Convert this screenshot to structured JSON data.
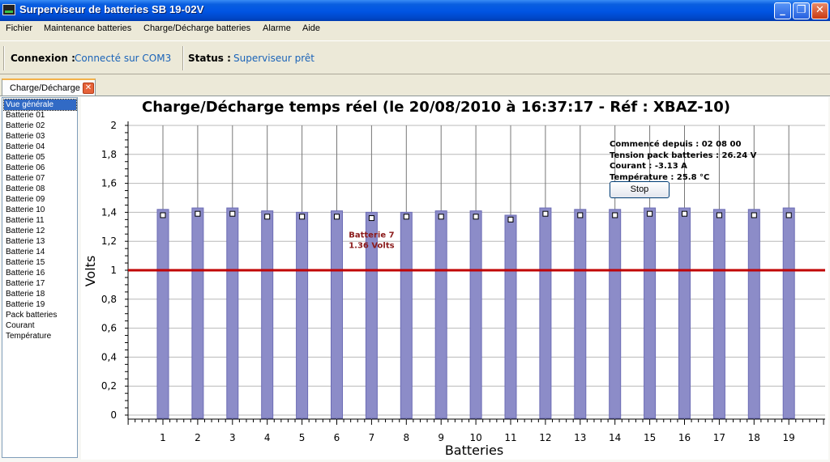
{
  "window": {
    "title": "Surperviseur de batteries SB 19-02V",
    "controls": {
      "minimize": "_",
      "maximize": "❐",
      "close": "✕"
    }
  },
  "menu": {
    "items": [
      "Fichier",
      "Maintenance batteries",
      "Charge/Décharge batteries",
      "Alarme",
      "Aide"
    ]
  },
  "status": {
    "connexion_label": "Connexion :",
    "connexion_value": "Connecté sur COM3",
    "status_label": "Status :",
    "status_value": "Superviseur prêt"
  },
  "tabs": [
    {
      "label": "Charge/Décharge",
      "close": "✕"
    }
  ],
  "sidebar": {
    "selected_index": 0,
    "items": [
      "Vue générale",
      "Batterie 01",
      "Batterie 02",
      "Batterie 03",
      "Batterie 04",
      "Batterie 05",
      "Batterie 06",
      "Batterie 07",
      "Batterie 08",
      "Batterie 09",
      "Batterie 10",
      "Batterie 11",
      "Batterie 12",
      "Batterie 13",
      "Batterie 14",
      "Batterie 15",
      "Batterie 16",
      "Batterie 17",
      "Batterie 18",
      "Batterie 19",
      "Pack batteries",
      "Courant",
      "Température"
    ]
  },
  "info_panel": {
    "lines": [
      "Commencé depuis : 02   08   00",
      "Tension pack batteries : 26.24 V",
      "Courant : -3.13 A",
      "Température : 25.8 °C"
    ],
    "stop_label": "Stop"
  },
  "chart_data": {
    "type": "bar",
    "title": "Charge/Décharge temps réel (le 20/08/2010 à 16:37:17 - Réf : XBAZ-10)",
    "xlabel": "Batteries",
    "ylabel": "Volts",
    "categories": [
      "1",
      "2",
      "3",
      "4",
      "5",
      "6",
      "7",
      "8",
      "9",
      "10",
      "11",
      "12",
      "13",
      "14",
      "15",
      "16",
      "17",
      "18",
      "19"
    ],
    "values": [
      1.42,
      1.43,
      1.43,
      1.41,
      1.4,
      1.41,
      1.4,
      1.4,
      1.41,
      1.41,
      1.38,
      1.43,
      1.42,
      1.42,
      1.43,
      1.43,
      1.42,
      1.42,
      1.43
    ],
    "markers": [
      1.38,
      1.39,
      1.39,
      1.37,
      1.37,
      1.37,
      1.36,
      1.37,
      1.37,
      1.37,
      1.35,
      1.39,
      1.38,
      1.38,
      1.39,
      1.39,
      1.38,
      1.38,
      1.38
    ],
    "threshold": 1,
    "yticks": [
      "0",
      "0,2",
      "0,4",
      "0,6",
      "0,8",
      "1",
      "1,2",
      "1,4",
      "1,6",
      "1,8",
      "2"
    ],
    "ylim": [
      0,
      2
    ],
    "annotation": {
      "category": "7",
      "line1": "Batterie 7",
      "line2": "1.36 Volts"
    },
    "colors": {
      "bar": "#8c8cc8",
      "bar_edge": "#6b6bb4",
      "threshold": "#c00000",
      "annotation": "#8b1a1a"
    }
  }
}
